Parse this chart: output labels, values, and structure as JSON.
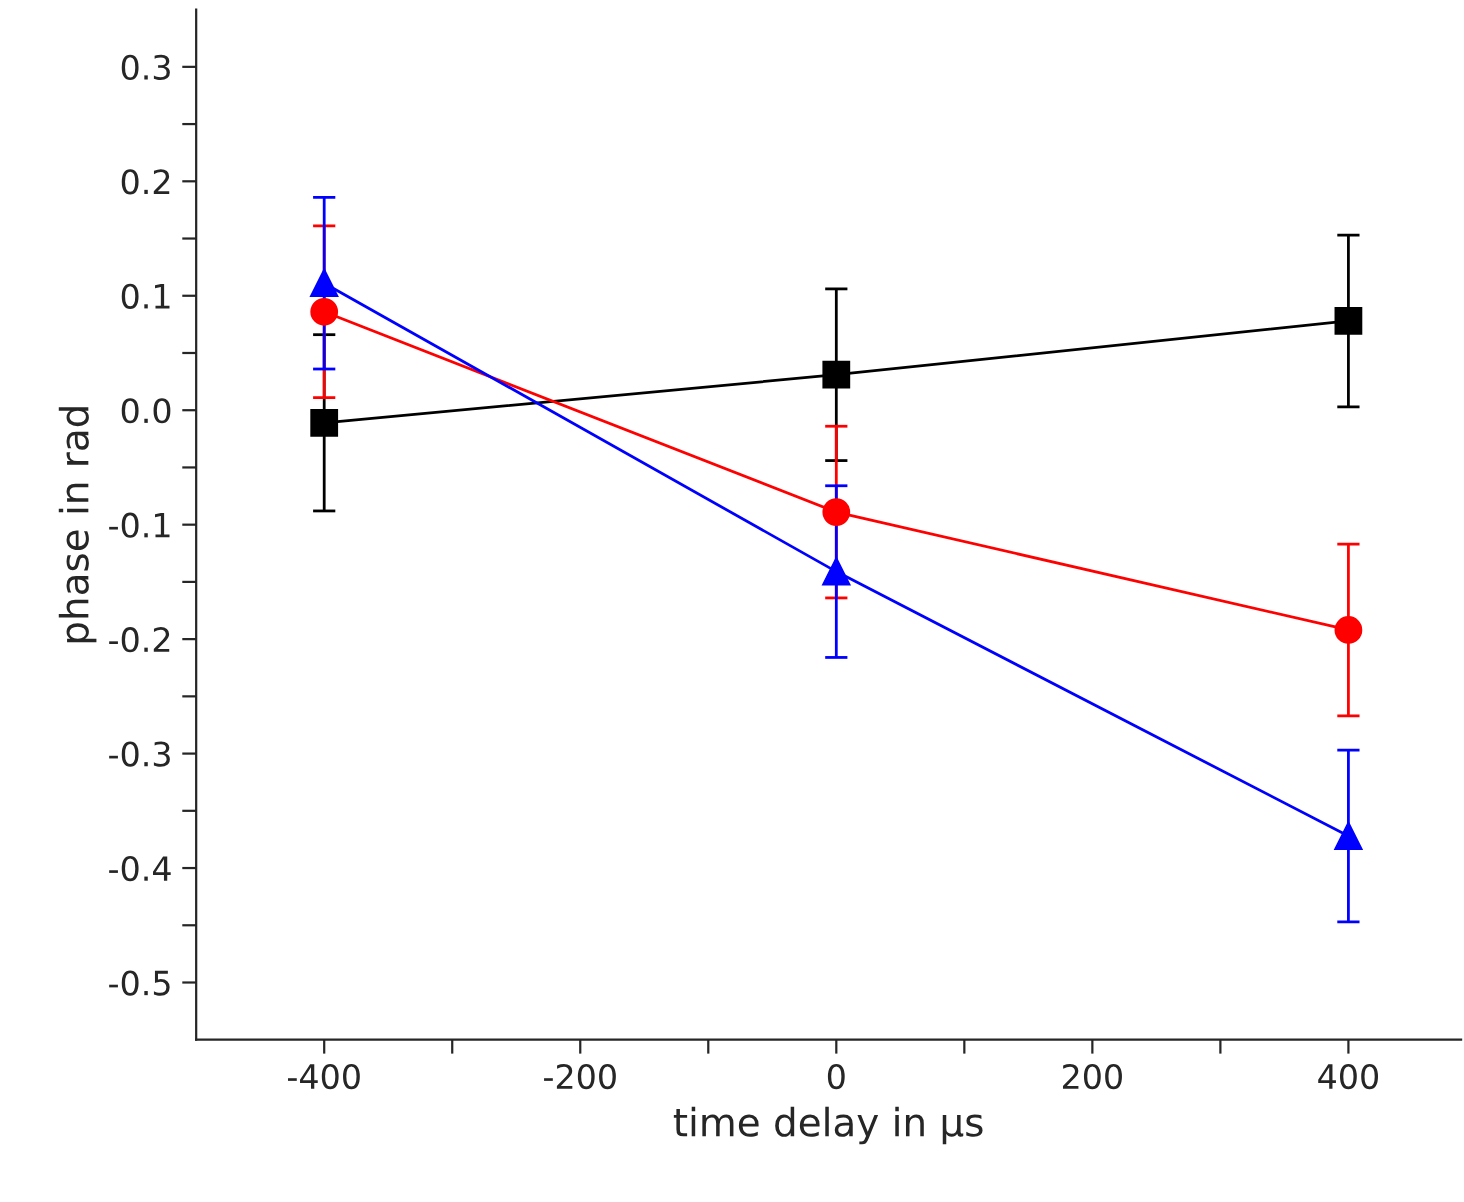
{
  "chart_data": {
    "type": "line",
    "xlabel": "time delay in µs",
    "ylabel": "phase in rad",
    "x": [
      -400,
      0,
      400
    ],
    "series": [
      {
        "color": "#000000",
        "marker": "square",
        "values": [
          -0.011,
          0.031,
          0.078
        ],
        "errors": [
          0.077,
          0.075,
          0.075
        ]
      },
      {
        "color": "#ff0000",
        "marker": "circle",
        "values": [
          0.086,
          -0.089,
          -0.192
        ],
        "errors": [
          0.075,
          0.075,
          0.075
        ]
      },
      {
        "color": "#0000ff",
        "marker": "triangle",
        "values": [
          0.111,
          -0.141,
          -0.372
        ],
        "errors": [
          0.075,
          0.075,
          0.075
        ]
      }
    ],
    "xlim": [
      -500,
      488
    ],
    "ylim": [
      -0.55,
      0.35
    ],
    "xticks": [
      -400,
      {
        "value": -300,
        "label": null
      },
      -200,
      {
        "value": -100,
        "label": null
      },
      0,
      {
        "value": 100,
        "label": null
      },
      200,
      {
        "value": 300,
        "label": null
      },
      400
    ],
    "yticks": [
      -0.5,
      {
        "value": -0.45,
        "label": null
      },
      -0.4,
      {
        "value": -0.35,
        "label": null
      },
      -0.3,
      {
        "value": -0.25,
        "label": null
      },
      -0.2,
      {
        "value": -0.15,
        "label": null
      },
      -0.1,
      {
        "value": -0.05,
        "label": null
      },
      {
        "value": 0,
        "label": "0.0"
      },
      {
        "value": 0.05,
        "label": null
      },
      0.1,
      {
        "value": 0.15,
        "label": null
      },
      0.2,
      {
        "value": 0.25,
        "label": null
      },
      0.3
    ],
    "grid": false,
    "line_style": "solid"
  }
}
